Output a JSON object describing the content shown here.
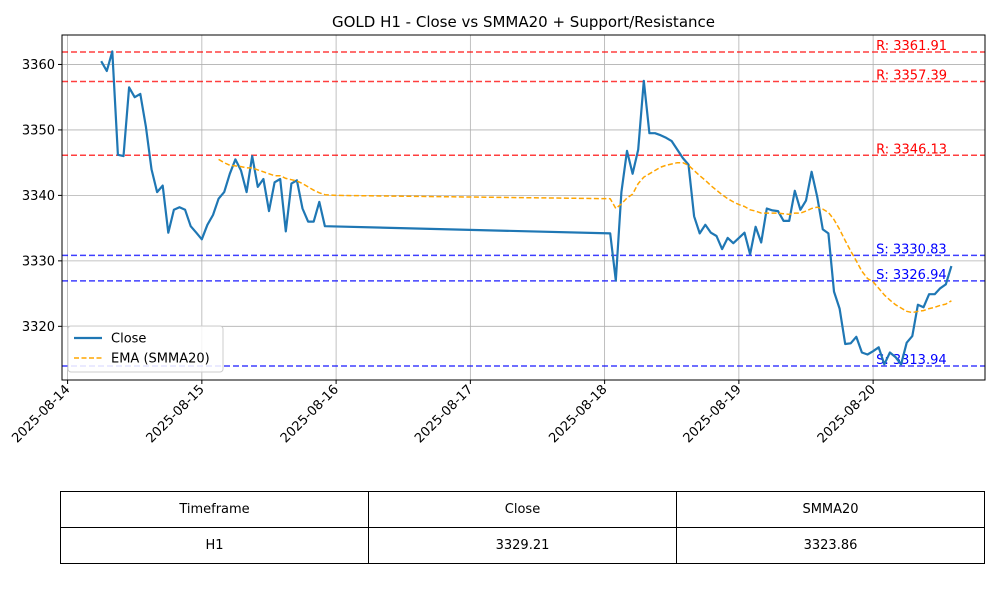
{
  "chart_data": {
    "type": "line",
    "title": "GOLD H1 - Close vs SMMA20 + Support/Resistance",
    "xlabel": "",
    "ylabel": "",
    "xlim": [
      "2025-08-13 23:00",
      "2025-08-20 20:00"
    ],
    "ylim": [
      3311.8,
      3364.5
    ],
    "grid": true,
    "legend_position": "lower left",
    "x_ticks": [
      "2025-08-14",
      "2025-08-15",
      "2025-08-16",
      "2025-08-17",
      "2025-08-18",
      "2025-08-19",
      "2025-08-20"
    ],
    "y_ticks": [
      3320,
      3330,
      3340,
      3350,
      3360
    ],
    "series": [
      {
        "name": "Close",
        "color": "#1f77b4",
        "style": "solid",
        "points": [
          [
            "2025-08-14 06:00",
            3360.5
          ],
          [
            "2025-08-14 07:00",
            3359.0
          ],
          [
            "2025-08-14 08:00",
            3362.0
          ],
          [
            "2025-08-14 09:00",
            3346.2
          ],
          [
            "2025-08-14 10:00",
            3346.0
          ],
          [
            "2025-08-14 11:00",
            3356.5
          ],
          [
            "2025-08-14 12:00",
            3355.0
          ],
          [
            "2025-08-14 13:00",
            3355.5
          ],
          [
            "2025-08-14 14:00",
            3350.5
          ],
          [
            "2025-08-14 15:00",
            3344.0
          ],
          [
            "2025-08-14 16:00",
            3340.5
          ],
          [
            "2025-08-14 17:00",
            3341.5
          ],
          [
            "2025-08-14 18:00",
            3334.3
          ],
          [
            "2025-08-14 19:00",
            3337.8
          ],
          [
            "2025-08-14 20:00",
            3338.2
          ],
          [
            "2025-08-14 21:00",
            3337.8
          ],
          [
            "2025-08-14 22:00",
            3335.3
          ],
          [
            "2025-08-14 23:00",
            3334.3
          ],
          [
            "2025-08-15 00:00",
            3333.3
          ],
          [
            "2025-08-15 01:00",
            3335.5
          ],
          [
            "2025-08-15 02:00",
            3337.0
          ],
          [
            "2025-08-15 03:00",
            3339.5
          ],
          [
            "2025-08-15 04:00",
            3340.5
          ],
          [
            "2025-08-15 05:00",
            3343.3
          ],
          [
            "2025-08-15 06:00",
            3345.5
          ],
          [
            "2025-08-15 07:00",
            3343.8
          ],
          [
            "2025-08-15 08:00",
            3340.5
          ],
          [
            "2025-08-15 09:00",
            3346.0
          ],
          [
            "2025-08-15 10:00",
            3341.3
          ],
          [
            "2025-08-15 11:00",
            3342.5
          ],
          [
            "2025-08-15 12:00",
            3337.6
          ],
          [
            "2025-08-15 13:00",
            3342.0
          ],
          [
            "2025-08-15 14:00",
            3342.5
          ],
          [
            "2025-08-15 15:00",
            3334.5
          ],
          [
            "2025-08-15 16:00",
            3341.8
          ],
          [
            "2025-08-15 17:00",
            3342.3
          ],
          [
            "2025-08-15 18:00",
            3338.0
          ],
          [
            "2025-08-15 19:00",
            3336.0
          ],
          [
            "2025-08-15 20:00",
            3336.0
          ],
          [
            "2025-08-15 21:00",
            3339.0
          ],
          [
            "2025-08-15 22:00",
            3335.3
          ],
          [
            "2025-08-18 01:00",
            3334.2
          ],
          [
            "2025-08-18 02:00",
            3327.0
          ],
          [
            "2025-08-18 03:00",
            3340.5
          ],
          [
            "2025-08-18 04:00",
            3346.8
          ],
          [
            "2025-08-18 05:00",
            3343.3
          ],
          [
            "2025-08-18 06:00",
            3347.0
          ],
          [
            "2025-08-18 07:00",
            3357.5
          ],
          [
            "2025-08-18 08:00",
            3349.5
          ],
          [
            "2025-08-18 09:00",
            3349.5
          ],
          [
            "2025-08-18 10:00",
            3349.2
          ],
          [
            "2025-08-18 11:00",
            3348.8
          ],
          [
            "2025-08-18 12:00",
            3348.3
          ],
          [
            "2025-08-18 13:00",
            3347.0
          ],
          [
            "2025-08-18 14:00",
            3345.7
          ],
          [
            "2025-08-18 15:00",
            3344.7
          ],
          [
            "2025-08-18 16:00",
            3336.8
          ],
          [
            "2025-08-18 17:00",
            3334.2
          ],
          [
            "2025-08-18 18:00",
            3335.5
          ],
          [
            "2025-08-18 19:00",
            3334.3
          ],
          [
            "2025-08-18 20:00",
            3333.8
          ],
          [
            "2025-08-18 21:00",
            3331.8
          ],
          [
            "2025-08-18 22:00",
            3333.5
          ],
          [
            "2025-08-18 23:00",
            3332.7
          ],
          [
            "2025-08-19 00:00",
            3333.5
          ],
          [
            "2025-08-19 01:00",
            3334.3
          ],
          [
            "2025-08-19 02:00",
            3331.0
          ],
          [
            "2025-08-19 03:00",
            3335.2
          ],
          [
            "2025-08-19 04:00",
            3332.8
          ],
          [
            "2025-08-19 05:00",
            3338.0
          ],
          [
            "2025-08-19 06:00",
            3337.7
          ],
          [
            "2025-08-19 07:00",
            3337.6
          ],
          [
            "2025-08-19 08:00",
            3336.1
          ],
          [
            "2025-08-19 09:00",
            3336.1
          ],
          [
            "2025-08-19 10:00",
            3340.7
          ],
          [
            "2025-08-19 11:00",
            3337.8
          ],
          [
            "2025-08-19 12:00",
            3339.2
          ],
          [
            "2025-08-19 13:00",
            3343.6
          ],
          [
            "2025-08-19 14:00",
            3339.8
          ],
          [
            "2025-08-19 15:00",
            3334.8
          ],
          [
            "2025-08-19 16:00",
            3334.2
          ],
          [
            "2025-08-19 17:00",
            3325.3
          ],
          [
            "2025-08-19 18:00",
            3322.7
          ],
          [
            "2025-08-19 19:00",
            3317.3
          ],
          [
            "2025-08-19 20:00",
            3317.4
          ],
          [
            "2025-08-19 21:00",
            3318.4
          ],
          [
            "2025-08-19 22:00",
            3316.0
          ],
          [
            "2025-08-19 23:00",
            3315.7
          ],
          [
            "2025-08-20 00:00",
            3316.2
          ],
          [
            "2025-08-20 01:00",
            3316.8
          ],
          [
            "2025-08-20 02:00",
            3314.2
          ],
          [
            "2025-08-20 03:00",
            3316.0
          ],
          [
            "2025-08-20 04:00",
            3315.3
          ],
          [
            "2025-08-20 05:00",
            3314.2
          ],
          [
            "2025-08-20 06:00",
            3317.5
          ],
          [
            "2025-08-20 07:00",
            3318.5
          ],
          [
            "2025-08-20 08:00",
            3323.3
          ],
          [
            "2025-08-20 09:00",
            3322.9
          ],
          [
            "2025-08-20 10:00",
            3324.9
          ],
          [
            "2025-08-20 11:00",
            3324.9
          ],
          [
            "2025-08-20 12:00",
            3325.8
          ],
          [
            "2025-08-20 13:00",
            3326.4
          ],
          [
            "2025-08-20 14:00",
            3329.2
          ]
        ]
      },
      {
        "name": "EMA (SMMA20)",
        "color": "#ffa500",
        "style": "dashed",
        "points": [
          [
            "2025-08-15 03:00",
            3345.5
          ],
          [
            "2025-08-15 04:00",
            3345.0
          ],
          [
            "2025-08-15 05:00",
            3344.6
          ],
          [
            "2025-08-15 06:00",
            3344.5
          ],
          [
            "2025-08-15 07:00",
            3344.4
          ],
          [
            "2025-08-15 08:00",
            3344.2
          ],
          [
            "2025-08-15 09:00",
            3344.2
          ],
          [
            "2025-08-15 10:00",
            3343.9
          ],
          [
            "2025-08-15 11:00",
            3343.6
          ],
          [
            "2025-08-15 12:00",
            3343.3
          ],
          [
            "2025-08-15 13:00",
            3343.0
          ],
          [
            "2025-08-15 14:00",
            3343.0
          ],
          [
            "2025-08-15 15:00",
            3342.6
          ],
          [
            "2025-08-15 16:00",
            3342.4
          ],
          [
            "2025-08-15 17:00",
            3342.2
          ],
          [
            "2025-08-15 18:00",
            3341.8
          ],
          [
            "2025-08-15 19:00",
            3341.3
          ],
          [
            "2025-08-15 20:00",
            3340.8
          ],
          [
            "2025-08-15 21:00",
            3340.4
          ],
          [
            "2025-08-15 22:00",
            3340.1
          ],
          [
            "2025-08-16 00:00",
            3340.0
          ],
          [
            "2025-08-18 01:00",
            3339.5
          ],
          [
            "2025-08-18 02:00",
            3338.0
          ],
          [
            "2025-08-18 03:00",
            3338.7
          ],
          [
            "2025-08-18 04:00",
            3339.6
          ],
          [
            "2025-08-18 05:00",
            3340.2
          ],
          [
            "2025-08-18 06:00",
            3341.8
          ],
          [
            "2025-08-18 07:00",
            3342.8
          ],
          [
            "2025-08-18 08:00",
            3343.3
          ],
          [
            "2025-08-18 09:00",
            3343.8
          ],
          [
            "2025-08-18 10:00",
            3344.3
          ],
          [
            "2025-08-18 11:00",
            3344.6
          ],
          [
            "2025-08-18 12:00",
            3344.8
          ],
          [
            "2025-08-18 13:00",
            3345.0
          ],
          [
            "2025-08-18 14:00",
            3345.0
          ],
          [
            "2025-08-18 15:00",
            3344.6
          ],
          [
            "2025-08-18 16:00",
            3343.8
          ],
          [
            "2025-08-18 17:00",
            3343.0
          ],
          [
            "2025-08-18 18:00",
            3342.3
          ],
          [
            "2025-08-18 19:00",
            3341.5
          ],
          [
            "2025-08-18 20:00",
            3340.8
          ],
          [
            "2025-08-18 21:00",
            3340.1
          ],
          [
            "2025-08-18 22:00",
            3339.5
          ],
          [
            "2025-08-18 23:00",
            3339.0
          ],
          [
            "2025-08-19 00:00",
            3338.6
          ],
          [
            "2025-08-19 01:00",
            3338.3
          ],
          [
            "2025-08-19 02:00",
            3337.8
          ],
          [
            "2025-08-19 03:00",
            3337.6
          ],
          [
            "2025-08-19 04:00",
            3337.3
          ],
          [
            "2025-08-19 05:00",
            3337.3
          ],
          [
            "2025-08-19 06:00",
            3337.3
          ],
          [
            "2025-08-19 07:00",
            3337.3
          ],
          [
            "2025-08-19 08:00",
            3337.2
          ],
          [
            "2025-08-19 09:00",
            3337.1
          ],
          [
            "2025-08-19 10:00",
            3337.3
          ],
          [
            "2025-08-19 11:00",
            3337.3
          ],
          [
            "2025-08-19 12:00",
            3337.6
          ],
          [
            "2025-08-19 13:00",
            3338.0
          ],
          [
            "2025-08-19 14:00",
            3338.2
          ],
          [
            "2025-08-19 15:00",
            3337.9
          ],
          [
            "2025-08-19 16:00",
            3337.4
          ],
          [
            "2025-08-19 17:00",
            3336.3
          ],
          [
            "2025-08-19 18:00",
            3334.8
          ],
          [
            "2025-08-19 19:00",
            3333.1
          ],
          [
            "2025-08-19 20:00",
            3331.5
          ],
          [
            "2025-08-19 21:00",
            3330.0
          ],
          [
            "2025-08-19 22:00",
            3328.4
          ],
          [
            "2025-08-19 23:00",
            3327.3
          ],
          [
            "2025-08-20 00:00",
            3326.8
          ],
          [
            "2025-08-20 01:00",
            3325.8
          ],
          [
            "2025-08-20 02:00",
            3324.8
          ],
          [
            "2025-08-20 03:00",
            3324.0
          ],
          [
            "2025-08-20 04:00",
            3323.3
          ],
          [
            "2025-08-20 05:00",
            3322.8
          ],
          [
            "2025-08-20 06:00",
            3322.3
          ],
          [
            "2025-08-20 07:00",
            3322.1
          ],
          [
            "2025-08-20 08:00",
            3322.3
          ],
          [
            "2025-08-20 09:00",
            3322.4
          ],
          [
            "2025-08-20 10:00",
            3322.7
          ],
          [
            "2025-08-20 11:00",
            3322.9
          ],
          [
            "2025-08-20 12:00",
            3323.2
          ],
          [
            "2025-08-20 13:00",
            3323.4
          ],
          [
            "2025-08-20 14:00",
            3323.9
          ]
        ]
      }
    ],
    "resistance": [
      {
        "label": "R: 3361.91",
        "value": 3361.91
      },
      {
        "label": "R: 3357.39",
        "value": 3357.39
      },
      {
        "label": "R: 3346.13",
        "value": 3346.13
      }
    ],
    "support": [
      {
        "label": "S: 3330.83",
        "value": 3330.83
      },
      {
        "label": "S: 3326.94",
        "value": 3326.94
      },
      {
        "label": "S: 3313.94",
        "value": 3313.94
      }
    ],
    "colors": {
      "resistance": "#ff0000",
      "support": "#0000ff",
      "grid": "#b0b0b0"
    }
  },
  "table": {
    "headers": [
      "Timeframe",
      "Close",
      "SMMA20"
    ],
    "row": [
      "H1",
      "3329.21",
      "3323.86"
    ]
  }
}
